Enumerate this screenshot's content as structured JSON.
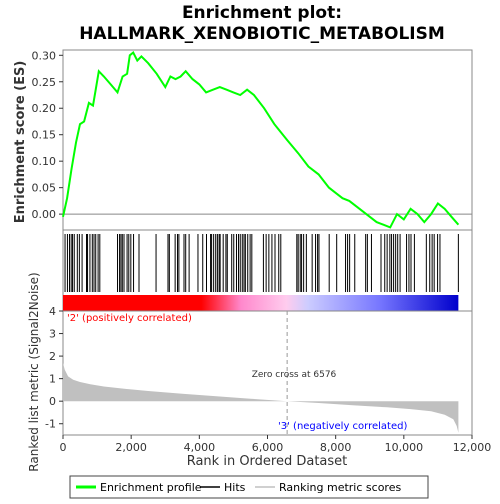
{
  "chart_data": {
    "type": "line",
    "title_line1": "Enrichment plot:",
    "title_line2": "HALLMARK_XENOBIOTIC_METABOLISM",
    "top_panel": {
      "ylabel": "Enrichment score (ES)",
      "ylim": [
        -0.03,
        0.31
      ],
      "yticks": [
        "0.00",
        "0.05",
        "0.10",
        "0.15",
        "0.20",
        "0.25",
        "0.30"
      ],
      "ytick_values": [
        0.0,
        0.05,
        0.1,
        0.15,
        0.2,
        0.25,
        0.3
      ],
      "line_color": "#00ff00",
      "es_profile": {
        "x": [
          0,
          120,
          250,
          380,
          500,
          620,
          760,
          880,
          960,
          1050,
          1200,
          1400,
          1600,
          1750,
          1880,
          1960,
          2060,
          2180,
          2300,
          2500,
          2750,
          3000,
          3150,
          3300,
          3450,
          3600,
          3800,
          4000,
          4200,
          4400,
          4600,
          4800,
          5000,
          5200,
          5400,
          5600,
          5900,
          6200,
          6576,
          6900,
          7200,
          7500,
          7800,
          8000,
          8200,
          8400,
          8700,
          9000,
          9200,
          9400,
          9600,
          9800,
          10000,
          10200,
          10400,
          10600,
          10800,
          11000,
          11200,
          11400,
          11600
        ],
        "y": [
          -0.005,
          0.03,
          0.085,
          0.135,
          0.17,
          0.175,
          0.21,
          0.205,
          0.235,
          0.27,
          0.26,
          0.245,
          0.23,
          0.26,
          0.265,
          0.3,
          0.305,
          0.29,
          0.298,
          0.285,
          0.265,
          0.24,
          0.26,
          0.255,
          0.26,
          0.27,
          0.255,
          0.245,
          0.23,
          0.235,
          0.24,
          0.235,
          0.23,
          0.225,
          0.235,
          0.225,
          0.2,
          0.17,
          0.14,
          0.115,
          0.09,
          0.075,
          0.05,
          0.04,
          0.03,
          0.025,
          0.01,
          -0.005,
          -0.015,
          -0.02,
          -0.025,
          0.0,
          -0.01,
          0.01,
          0.0,
          -0.015,
          0.0,
          0.02,
          0.01,
          -0.005,
          -0.02
        ]
      }
    },
    "hits_panel": {
      "label": "Hits",
      "hit_positions": [
        60,
        130,
        190,
        240,
        280,
        330,
        420,
        480,
        560,
        690,
        720,
        790,
        860,
        910,
        960,
        1030,
        1080,
        1600,
        1660,
        1700,
        1740,
        1790,
        1880,
        1930,
        1990,
        2070,
        2230,
        2730,
        3080,
        3120,
        3290,
        3360,
        3400,
        3550,
        3600,
        3700,
        3960,
        4100,
        4210,
        4330,
        4360,
        4420,
        4480,
        4530,
        4580,
        4610,
        4700,
        4780,
        4820,
        4950,
        5010,
        5090,
        5150,
        5200,
        5260,
        5310,
        5350,
        5420,
        5490,
        5540,
        5880,
        5960,
        6040,
        6130,
        6220,
        6330,
        6390,
        6860,
        6900,
        6960,
        7000,
        7060,
        7140,
        7310,
        7410,
        7470,
        7510,
        7810,
        8030,
        8290,
        8350,
        8410,
        8560,
        8880,
        8930,
        9050,
        9330,
        9440,
        9510,
        9590,
        9640,
        9700,
        9760,
        9820,
        9890,
        10080,
        10150,
        10210,
        10310,
        10660,
        10760,
        10830,
        10890,
        10990,
        11060,
        11600
      ]
    },
    "ranking_panel": {
      "ylabel": "Ranked list metric (Signal2Noise)",
      "ylim": [
        -1.5,
        4.0
      ],
      "yticks": [
        "-1",
        "0",
        "1",
        "2",
        "3",
        "4"
      ],
      "ytick_values": [
        -1,
        0,
        1,
        2,
        3,
        4
      ],
      "fill_color": "#c0c0c0",
      "metric_curve": {
        "x": [
          0,
          50,
          150,
          300,
          500,
          800,
          1200,
          1800,
          2500,
          3500,
          4500,
          5500,
          6576,
          7500,
          8500,
          9500,
          10200,
          10800,
          11200,
          11450,
          11550,
          11600
        ],
        "y": [
          1.7,
          1.4,
          1.1,
          0.95,
          0.85,
          0.75,
          0.65,
          0.55,
          0.45,
          0.33,
          0.22,
          0.11,
          0.0,
          -0.08,
          -0.18,
          -0.27,
          -0.35,
          -0.45,
          -0.6,
          -0.8,
          -1.1,
          -1.4
        ]
      },
      "zero_cross_label": "Zero cross at 6576",
      "zero_cross_x": 6576,
      "pos_label": "'2' (positively correlated)",
      "neg_label": "'3' (negatively correlated)",
      "pos_color": "#ff0000",
      "neg_color": "#0000ff"
    },
    "xaxis": {
      "label": "Rank in Ordered Dataset",
      "xlim": [
        0,
        12000
      ],
      "ticks": [
        "0",
        "2,000",
        "4,000",
        "6,000",
        "8,000",
        "10,000",
        "12,000"
      ],
      "tick_values": [
        0,
        2000,
        4000,
        6000,
        8000,
        10000,
        12000
      ],
      "n_genes": 11600
    },
    "legend": {
      "placement": "bottom",
      "items": [
        {
          "label": "Enrichment profile",
          "color": "#00ff00"
        },
        {
          "label": "Hits",
          "color": "#000000"
        },
        {
          "label": "Ranking metric scores",
          "color": "#c0c0c0"
        }
      ]
    }
  }
}
